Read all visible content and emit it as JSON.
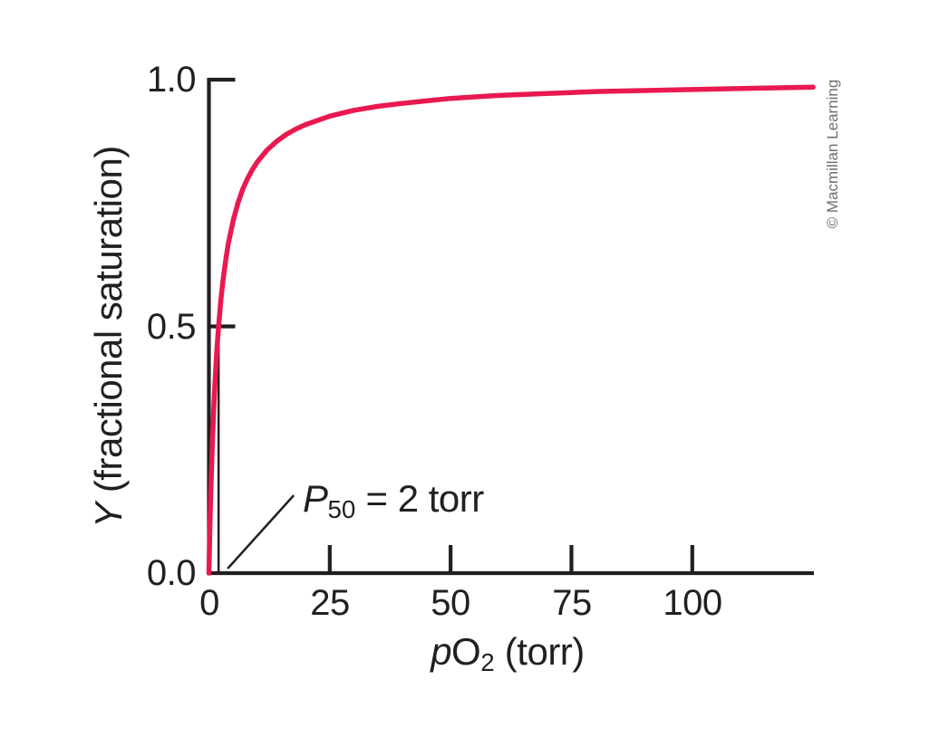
{
  "figure": {
    "credit": "© Macmillan Learning"
  },
  "labels": {
    "ylabel_symbol": "Y",
    "ylabel_rest": " (fractional saturation)",
    "xlabel_italic_prefix": "p",
    "xlabel_base": "O",
    "xlabel_subscript": "2",
    "xlabel_rest": " (torr)"
  },
  "chart_data": {
    "type": "line",
    "xlabel": "pO2 (torr)",
    "ylabel": "Y (fractional saturation)",
    "xlim": [
      0,
      125
    ],
    "ylim": [
      0,
      1.0
    ],
    "xticks": [
      0,
      25,
      50,
      75,
      100
    ],
    "xtick_labels": [
      "0",
      "25",
      "50",
      "75",
      "100"
    ],
    "yticks": [
      0.0,
      0.5,
      1.0
    ],
    "ytick_labels": [
      "0.0",
      "0.5",
      "1.0"
    ],
    "grid": false,
    "legend": false,
    "colors": {
      "curve": "#e9194f",
      "axis": "#231f20",
      "credit_text": "#6d6e71"
    },
    "series": [
      {
        "name": "oxygen-binding saturation curve",
        "color": "#e9194f",
        "p50_torr": 2,
        "points": [
          [
            0,
            0
          ],
          [
            0.25,
            0.111
          ],
          [
            0.5,
            0.2
          ],
          [
            0.75,
            0.273
          ],
          [
            1,
            0.333
          ],
          [
            1.25,
            0.385
          ],
          [
            1.5,
            0.429
          ],
          [
            1.75,
            0.467
          ],
          [
            2,
            0.5
          ],
          [
            2.5,
            0.556
          ],
          [
            3,
            0.6
          ],
          [
            3.5,
            0.636
          ],
          [
            4,
            0.667
          ],
          [
            5,
            0.714
          ],
          [
            6,
            0.75
          ],
          [
            7,
            0.778
          ],
          [
            8,
            0.8
          ],
          [
            9,
            0.818
          ],
          [
            10,
            0.833
          ],
          [
            12,
            0.857
          ],
          [
            14,
            0.875
          ],
          [
            16,
            0.889
          ],
          [
            18,
            0.9
          ],
          [
            20,
            0.909
          ],
          [
            25,
            0.926
          ],
          [
            30,
            0.938
          ],
          [
            35,
            0.946
          ],
          [
            40,
            0.952
          ],
          [
            45,
            0.957
          ],
          [
            50,
            0.962
          ],
          [
            60,
            0.968
          ],
          [
            70,
            0.972
          ],
          [
            80,
            0.976
          ],
          [
            90,
            0.978
          ],
          [
            100,
            0.98
          ],
          [
            110,
            0.982
          ],
          [
            120,
            0.984
          ],
          [
            125,
            0.985
          ]
        ]
      }
    ],
    "annotations": [
      {
        "label": "P50 = 2 torr",
        "label_parts": {
          "symbol": "P",
          "subscript": "50",
          "rest": " = 2 torr"
        },
        "marker": {
          "type": "vline",
          "x": 2,
          "from_y": 0.0,
          "to_y": 0.5
        },
        "leader_line": true
      }
    ]
  }
}
